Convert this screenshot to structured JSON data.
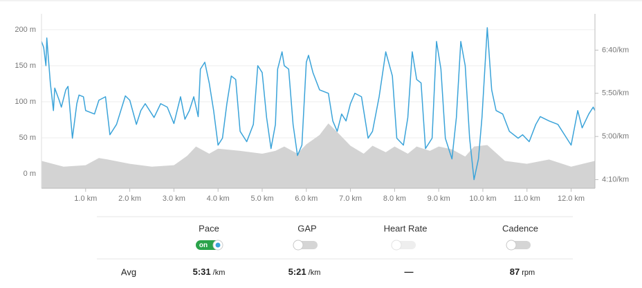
{
  "chart_data": {
    "type": "line",
    "xlim": [
      0,
      12.54
    ],
    "xticks": [
      {
        "value": 1,
        "label": "1.0 km"
      },
      {
        "value": 2,
        "label": "2.0 km"
      },
      {
        "value": 3,
        "label": "3.0 km"
      },
      {
        "value": 4,
        "label": "4.0 km"
      },
      {
        "value": 5,
        "label": "5.0 km"
      },
      {
        "value": 6,
        "label": "6.0 km"
      },
      {
        "value": 7,
        "label": "7.0 km"
      },
      {
        "value": 8,
        "label": "8.0 km"
      },
      {
        "value": 9,
        "label": "9.0 km"
      },
      {
        "value": 10,
        "label": "10.0 km"
      },
      {
        "value": 11,
        "label": "11.0 km"
      },
      {
        "value": 12,
        "label": "12.0 km"
      }
    ],
    "ylim": [
      -20,
      222
    ],
    "yticks": [
      {
        "value": 0,
        "label": "0 m"
      },
      {
        "value": 50,
        "label": "50 m"
      },
      {
        "value": 100,
        "label": "100 m"
      },
      {
        "value": 150,
        "label": "150 m"
      },
      {
        "value": 200,
        "label": "200 m"
      }
    ],
    "y2lim": [
      240,
      442
    ],
    "y2ticks": [
      {
        "value": 250,
        "label": "4:10/km"
      },
      {
        "value": 300,
        "label": "5:00/km"
      },
      {
        "value": 350,
        "label": "5:50/km"
      },
      {
        "value": 400,
        "label": "6:40/km"
      }
    ],
    "grid": true,
    "series": [
      {
        "type": "area",
        "color": "#d3d3d3",
        "x": [
          0,
          0.5,
          1.0,
          1.3,
          1.5,
          2.0,
          2.5,
          3.0,
          3.3,
          3.5,
          3.8,
          4.0,
          4.5,
          5.0,
          5.3,
          5.5,
          5.8,
          6.0,
          6.3,
          6.5,
          6.7,
          7.0,
          7.3,
          7.5,
          7.8,
          8.0,
          8.3,
          8.5,
          8.8,
          9.0,
          9.3,
          9.6,
          9.8,
          10.1,
          10.5,
          11.0,
          11.5,
          12.0,
          12.54
        ],
        "values": [
          18,
          10,
          12,
          22,
          20,
          14,
          10,
          12,
          25,
          38,
          28,
          35,
          32,
          28,
          32,
          38,
          28,
          41,
          54,
          70,
          58,
          39,
          28,
          39,
          30,
          38,
          28,
          38,
          32,
          38,
          34,
          24,
          38,
          40,
          18,
          14,
          20,
          10,
          18
        ]
      },
      {
        "type": "line",
        "axis": "y2",
        "color": "#3aa3d9",
        "x": [
          0,
          0.05,
          0.1,
          0.12,
          0.2,
          0.27,
          0.3,
          0.4,
          0.45,
          0.55,
          0.6,
          0.7,
          0.8,
          0.85,
          0.95,
          1.0,
          1.2,
          1.3,
          1.45,
          1.55,
          1.7,
          1.9,
          2.0,
          2.15,
          2.25,
          2.35,
          2.55,
          2.7,
          2.85,
          3.0,
          3.15,
          3.25,
          3.35,
          3.45,
          3.55,
          3.6,
          3.7,
          3.8,
          3.9,
          4.0,
          4.1,
          4.2,
          4.3,
          4.4,
          4.5,
          4.65,
          4.8,
          4.9,
          5.0,
          5.1,
          5.2,
          5.3,
          5.35,
          5.45,
          5.5,
          5.6,
          5.7,
          5.8,
          5.9,
          6.0,
          6.05,
          6.15,
          6.3,
          6.5,
          6.6,
          6.7,
          6.8,
          6.9,
          7.0,
          7.1,
          7.25,
          7.4,
          7.5,
          7.65,
          7.8,
          7.95,
          8.05,
          8.2,
          8.3,
          8.4,
          8.5,
          8.6,
          8.7,
          8.85,
          8.95,
          9.0,
          9.05,
          9.15,
          9.3,
          9.4,
          9.5,
          9.6,
          9.7,
          9.8,
          9.9,
          9.98,
          10.1,
          10.2,
          10.3,
          10.45,
          10.6,
          10.8,
          10.9,
          11.05,
          11.2,
          11.3,
          11.5,
          11.7,
          11.9,
          12.0,
          12.15,
          12.25,
          12.4,
          12.5,
          12.54
        ],
        "values": [
          410,
          403,
          382,
          414,
          362,
          330,
          356,
          342,
          334,
          354,
          358,
          298,
          338,
          348,
          346,
          330,
          326,
          342,
          346,
          302,
          314,
          347,
          342,
          314,
          330,
          338,
          322,
          338,
          334,
          315,
          346,
          320,
          330,
          346,
          323,
          378,
          386,
          362,
          330,
          290,
          298,
          338,
          370,
          366,
          306,
          294,
          314,
          382,
          374,
          322,
          286,
          314,
          378,
          398,
          382,
          378,
          314,
          278,
          290,
          386,
          394,
          374,
          354,
          350,
          318,
          306,
          326,
          318,
          338,
          350,
          346,
          298,
          306,
          346,
          398,
          370,
          298,
          290,
          322,
          398,
          366,
          362,
          286,
          298,
          410,
          394,
          378,
          298,
          274,
          322,
          410,
          382,
          298,
          250,
          274,
          322,
          426,
          354,
          330,
          326,
          306,
          298,
          302,
          294,
          314,
          323,
          318,
          314,
          298,
          290,
          330,
          310,
          326,
          334,
          330
        ]
      }
    ]
  },
  "controls": [
    {
      "label": "Pace",
      "state": "on"
    },
    {
      "label": "GAP"
    },
    {
      "label": "Heart Rate"
    },
    {
      "label": "Cadence"
    }
  ],
  "averages": {
    "label": "Avg",
    "items": [
      {
        "value": "5:31",
        "unit": "/km"
      },
      {
        "value": "5:21",
        "unit": "/km"
      },
      {
        "value": "—"
      },
      {
        "value": "87",
        "unit": "rpm"
      }
    ]
  }
}
